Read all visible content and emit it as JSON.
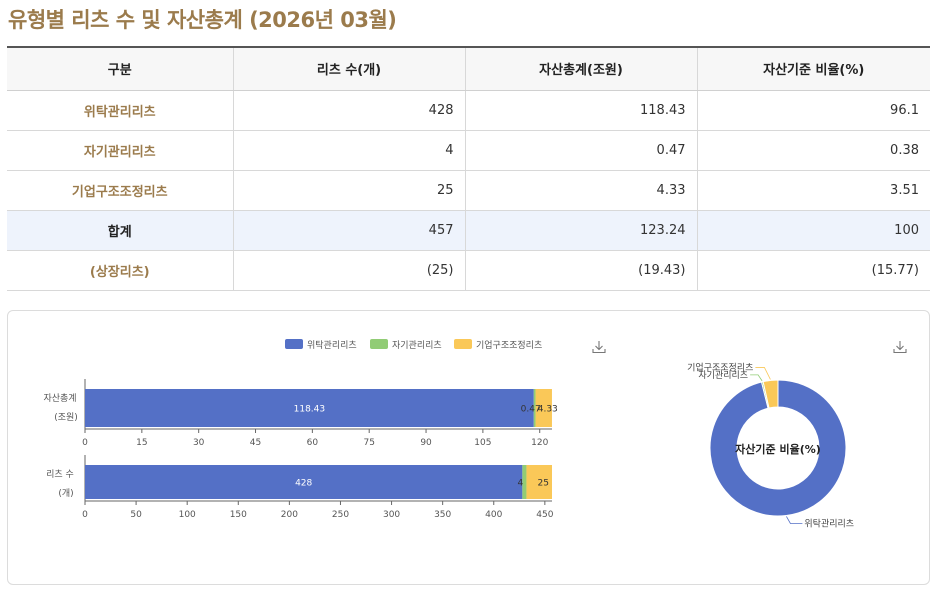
{
  "page": {
    "title": "유형별 리츠 수 및 자산총계 (2026년 03월)"
  },
  "table": {
    "headers": [
      "구분",
      "리츠 수(개)",
      "자산총계(조원)",
      "자산기준 비율(%)"
    ],
    "rows": [
      {
        "label": "위탁관리리츠",
        "count": "428",
        "assets": "118.43",
        "ratio": "96.1"
      },
      {
        "label": "자기관리리츠",
        "count": "4",
        "assets": "0.47",
        "ratio": "0.38"
      },
      {
        "label": "기업구조조정리츠",
        "count": "25",
        "assets": "4.33",
        "ratio": "3.51"
      },
      {
        "label": "합계",
        "count": "457",
        "assets": "123.24",
        "ratio": "100"
      },
      {
        "label": "(상장리츠)",
        "count": "(25)",
        "assets": "(19.43)",
        "ratio": "(15.77)"
      }
    ]
  },
  "colors": {
    "위탁관리리츠": "#5470c6",
    "자기관리리츠": "#91cc75",
    "기업구조조정리츠": "#fac858"
  },
  "icons": {
    "download": "download-icon"
  },
  "chart_data": [
    {
      "type": "bar",
      "orientation": "horizontal",
      "stacked": true,
      "legend": "top",
      "series_names": [
        "위탁관리리츠",
        "자기관리리츠",
        "기업구조조정리츠"
      ],
      "panels": [
        {
          "category": [
            "자산총계",
            "(조원)"
          ],
          "values": [
            118.43,
            0.47,
            4.33
          ],
          "labels": [
            "118.43",
            "0.47",
            "4.33"
          ],
          "xlim": [
            0,
            123.24
          ],
          "ticks": [
            0,
            15,
            30,
            45,
            60,
            75,
            90,
            105,
            120
          ]
        },
        {
          "category": [
            "리츠 수",
            "(개)"
          ],
          "values": [
            428,
            4,
            25
          ],
          "labels": [
            "428",
            "4",
            "25"
          ],
          "xlim": [
            0,
            457
          ],
          "ticks": [
            0,
            50,
            100,
            150,
            200,
            250,
            300,
            350,
            400,
            450
          ]
        }
      ]
    },
    {
      "type": "pie",
      "donut": true,
      "center_label": "자산기준 비율(%)",
      "labels": [
        "위탁관리리츠",
        "자기관리리츠",
        "기업구조조정리츠"
      ],
      "values": [
        96.1,
        0.38,
        3.51
      ]
    }
  ]
}
